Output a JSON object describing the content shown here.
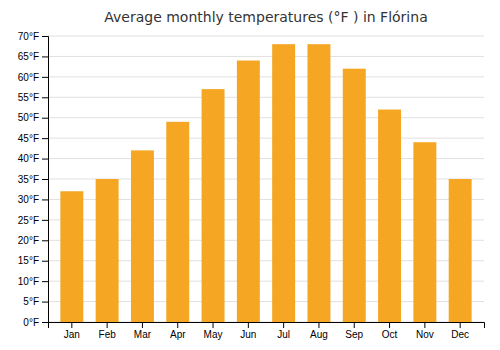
{
  "chart_data": {
    "type": "bar",
    "title": "Average monthly temperatures (°F ) in Flórina",
    "categories": [
      "Jan",
      "Feb",
      "Mar",
      "Apr",
      "May",
      "Jun",
      "Jul",
      "Aug",
      "Sep",
      "Oct",
      "Nov",
      "Dec"
    ],
    "values": [
      32,
      35,
      42,
      49,
      57,
      64,
      68,
      68,
      62,
      52,
      44,
      35
    ],
    "color": "#F5A623",
    "ylim": [
      0,
      70
    ],
    "yticks": [
      {
        "value": 0,
        "label": "0°F"
      },
      {
        "value": 5,
        "label": "5°F"
      },
      {
        "value": 10,
        "label": "10°F"
      },
      {
        "value": 15,
        "label": "15°F"
      },
      {
        "value": 20,
        "label": "20°F"
      },
      {
        "value": 25,
        "label": "25°F"
      },
      {
        "value": 30,
        "label": "30°F"
      },
      {
        "value": 35,
        "label": "35°F"
      },
      {
        "value": 40,
        "label": "40°F"
      },
      {
        "value": 45,
        "label": "45°F"
      },
      {
        "value": 50,
        "label": "50°F"
      },
      {
        "value": 55,
        "label": "55°F"
      },
      {
        "value": 60,
        "label": "60°F"
      },
      {
        "value": 65,
        "label": "65°F"
      },
      {
        "value": 70,
        "label": "70°F"
      }
    ],
    "grid": true
  }
}
